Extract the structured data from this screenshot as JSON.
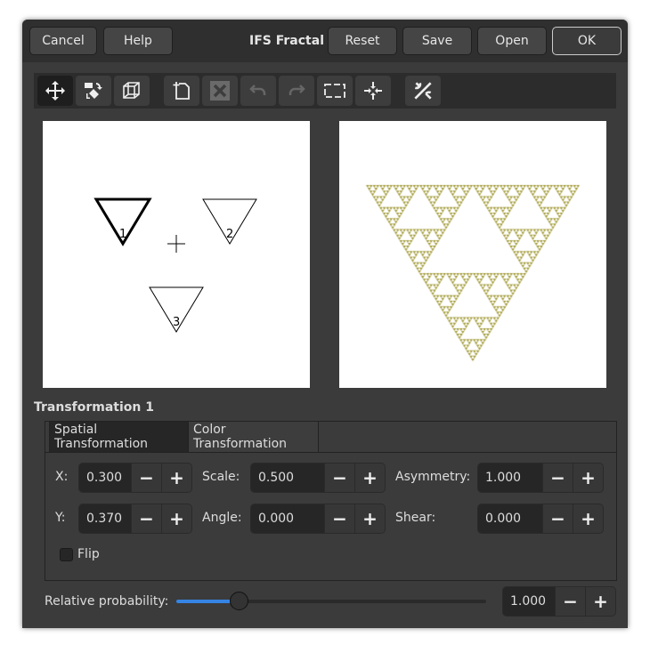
{
  "header": {
    "title": "IFS Fractal",
    "cancel": "Cancel",
    "help": "Help",
    "reset": "Reset",
    "save": "Save",
    "open": "Open",
    "ok": "OK"
  },
  "toolbar": {
    "icons": [
      "move-icon",
      "rotate-scale-icon",
      "stretch-icon",
      "new-transform-icon",
      "delete-icon",
      "undo-icon",
      "redo-icon",
      "select-all-icon",
      "recompute-center-icon",
      "options-icon"
    ]
  },
  "design": {
    "labels": [
      "1",
      "2",
      "3"
    ],
    "selected": "1"
  },
  "preview": {
    "fractal_color": "#a39c3a"
  },
  "section_title": "Transformation 1",
  "tabs": [
    {
      "label": "Spatial Transformation",
      "active": true
    },
    {
      "label": "Color Transformation",
      "active": false
    }
  ],
  "fields": {
    "x": {
      "label": "X:",
      "value": "0.300"
    },
    "y": {
      "label": "Y:",
      "value": "0.370"
    },
    "scale": {
      "label": "Scale:",
      "value": "0.500"
    },
    "angle": {
      "label": "Angle:",
      "value": "0.000"
    },
    "asymmetry": {
      "label": "Asymmetry:",
      "value": "1.000"
    },
    "shear": {
      "label": "Shear:",
      "value": "0.000"
    }
  },
  "flip": {
    "label": "Flip",
    "checked": false
  },
  "probability": {
    "label": "Relative probability:",
    "value": "1.000",
    "slider_fraction": 0.2
  },
  "colors": {
    "accent": "#3584e4"
  }
}
